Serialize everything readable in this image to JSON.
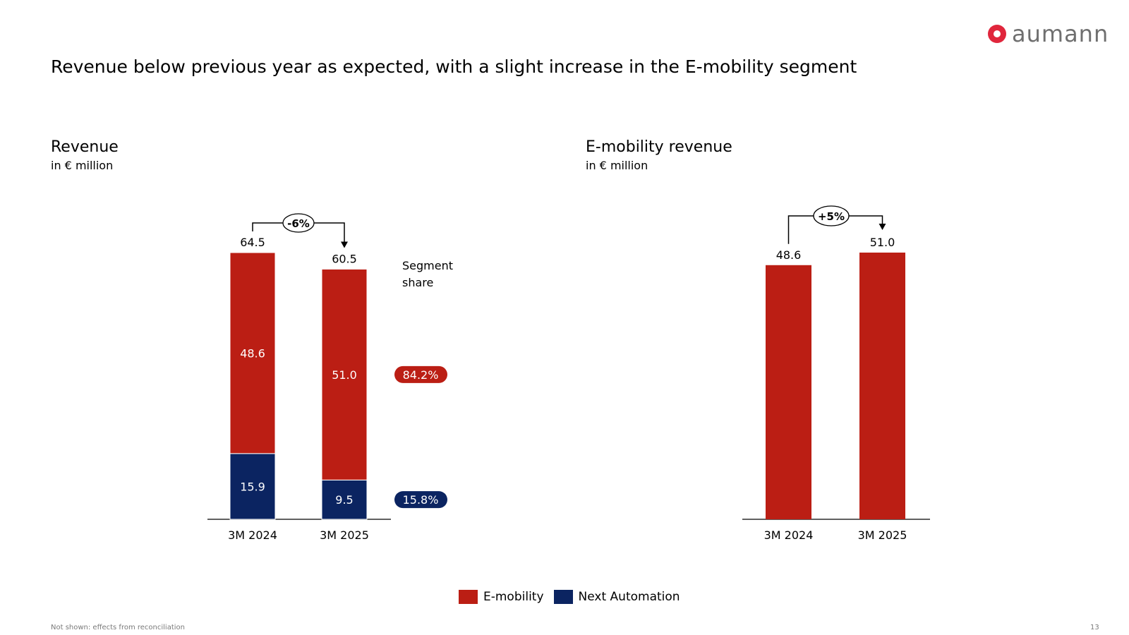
{
  "brand": {
    "name": "aumann",
    "logo_color": "#e0263c",
    "text_color": "#6f6f6f"
  },
  "headline": "Revenue below previous year as expected, with a slight increase in the E-mobility segment",
  "colors": {
    "emobility": "#bb1e14",
    "automation": "#0b2461"
  },
  "chart_data": [
    {
      "type": "bar",
      "stacked": true,
      "title": "Revenue",
      "unit": "in € million",
      "categories": [
        "3M 2024",
        "3M 2025"
      ],
      "series": [
        {
          "name": "Next Automation",
          "values": [
            15.9,
            9.5
          ],
          "labels": [
            "15.9",
            "9.5"
          ]
        },
        {
          "name": "E-mobility",
          "values": [
            48.6,
            51.0
          ],
          "labels": [
            "48.6",
            "51.0"
          ]
        }
      ],
      "totals": [
        64.5,
        60.5
      ],
      "total_labels": [
        "64.5",
        "60.5"
      ],
      "change_label": "-6%",
      "segment_share_title": "Segment share",
      "segment_share": [
        {
          "series": "E-mobility",
          "label": "84.2%"
        },
        {
          "series": "Next Automation",
          "label": "15.8%"
        }
      ],
      "ylim": [
        0,
        64.5
      ]
    },
    {
      "type": "bar",
      "title": "E-mobility revenue",
      "unit": "in € million",
      "categories": [
        "3M 2024",
        "3M 2025"
      ],
      "series": [
        {
          "name": "E-mobility",
          "values": [
            48.6,
            51.0
          ],
          "labels": [
            "48.6",
            "51.0"
          ]
        }
      ],
      "change_label": "+5%",
      "ylim": [
        0,
        51.0
      ]
    }
  ],
  "legend": [
    {
      "name": "E-mobility",
      "color": "#bb1e14"
    },
    {
      "name": "Next Automation",
      "color": "#0b2461"
    }
  ],
  "footnote": "Not shown: effects from reconciliation",
  "page_number": "13"
}
